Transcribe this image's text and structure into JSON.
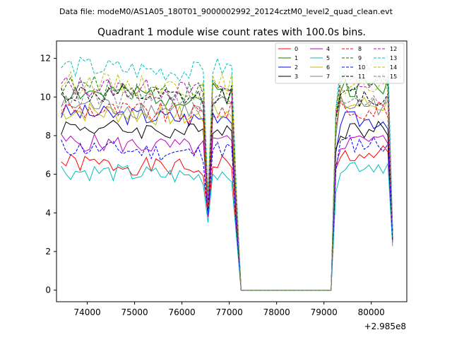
{
  "figure": {
    "suptitle": "Data file: modeM0/AS1A05_180T01_9000002992_20124cztM0_level2_quad_clean.evt"
  },
  "chart_data": {
    "type": "line",
    "title": "Quadrant 1 module wise count rates with 100.0s bins.",
    "xlabel": "",
    "ylabel": "",
    "x_offset_label": "+2.985e8",
    "xlim": [
      73350,
      80750
    ],
    "ylim": [
      -0.6,
      12.9
    ],
    "xticks": [
      74000,
      75000,
      76000,
      77000,
      78000,
      79000,
      80000
    ],
    "yticks": [
      0,
      2,
      4,
      6,
      8,
      10,
      12
    ],
    "grid": false,
    "legend": {
      "placement": "top-right",
      "columns": 4
    },
    "series": [
      {
        "name": "0",
        "color": "#ff0000",
        "dash": "solid",
        "base": 6.6,
        "sw": 0.3,
        "dip": 3.9,
        "late": 7.0,
        "seed": 1
      },
      {
        "name": "1",
        "color": "#008000",
        "dash": "solid",
        "base": 10.3,
        "sw": 0.35,
        "dip": 4.5,
        "late": 10.5,
        "seed": 2
      },
      {
        "name": "2",
        "color": "#0000ff",
        "dash": "solid",
        "base": 9.2,
        "sw": 0.3,
        "dip": 4.2,
        "late": 8.8,
        "seed": 3
      },
      {
        "name": "3",
        "color": "#000000",
        "dash": "solid",
        "base": 8.5,
        "sw": 0.3,
        "dip": 4.0,
        "late": 8.3,
        "seed": 4
      },
      {
        "name": "4",
        "color": "#bf00bf",
        "dash": "solid",
        "base": 7.7,
        "sw": 0.3,
        "dip": 3.8,
        "late": 7.7,
        "seed": 5
      },
      {
        "name": "5",
        "color": "#00bfbf",
        "dash": "solid",
        "base": 6.2,
        "sw": 0.3,
        "dip": 3.5,
        "late": 6.5,
        "seed": 6
      },
      {
        "name": "6",
        "color": "#bfbf00",
        "dash": "solid",
        "base": 9.3,
        "sw": 0.35,
        "dip": 4.3,
        "late": 9.6,
        "seed": 7
      },
      {
        "name": "7",
        "color": "#808080",
        "dash": "solid",
        "base": 9.6,
        "sw": 0.35,
        "dip": 4.3,
        "late": 9.6,
        "seed": 8
      },
      {
        "name": "8",
        "color": "#ff0000",
        "dash": "dashed",
        "base": 9.4,
        "sw": 0.35,
        "dip": 4.4,
        "late": 9.4,
        "seed": 9
      },
      {
        "name": "9",
        "color": "#008000",
        "dash": "dashed",
        "base": 10.6,
        "sw": 0.35,
        "dip": 4.8,
        "late": 10.8,
        "seed": 10
      },
      {
        "name": "10",
        "color": "#0000ff",
        "dash": "dashed",
        "base": 7.4,
        "sw": 0.3,
        "dip": 3.9,
        "late": 7.6,
        "seed": 11
      },
      {
        "name": "11",
        "color": "#000000",
        "dash": "dashed",
        "base": 10.2,
        "sw": 0.35,
        "dip": 4.6,
        "late": 10.0,
        "seed": 12
      },
      {
        "name": "12",
        "color": "#bf00bf",
        "dash": "dashed",
        "base": 10.6,
        "sw": 0.35,
        "dip": 4.8,
        "late": 10.7,
        "seed": 13
      },
      {
        "name": "13",
        "color": "#00bfbf",
        "dash": "dashed",
        "base": 11.6,
        "sw": 0.35,
        "dip": 5.0,
        "late": 11.6,
        "seed": 14
      },
      {
        "name": "14",
        "color": "#bfbf00",
        "dash": "dashed",
        "base": 10.8,
        "sw": 0.35,
        "dip": 4.8,
        "late": 10.6,
        "seed": 15
      },
      {
        "name": "15",
        "color": "#808080",
        "dash": "dashed",
        "base": 10.0,
        "sw": 0.35,
        "dip": 4.5,
        "late": 10.0,
        "seed": 16
      }
    ]
  }
}
